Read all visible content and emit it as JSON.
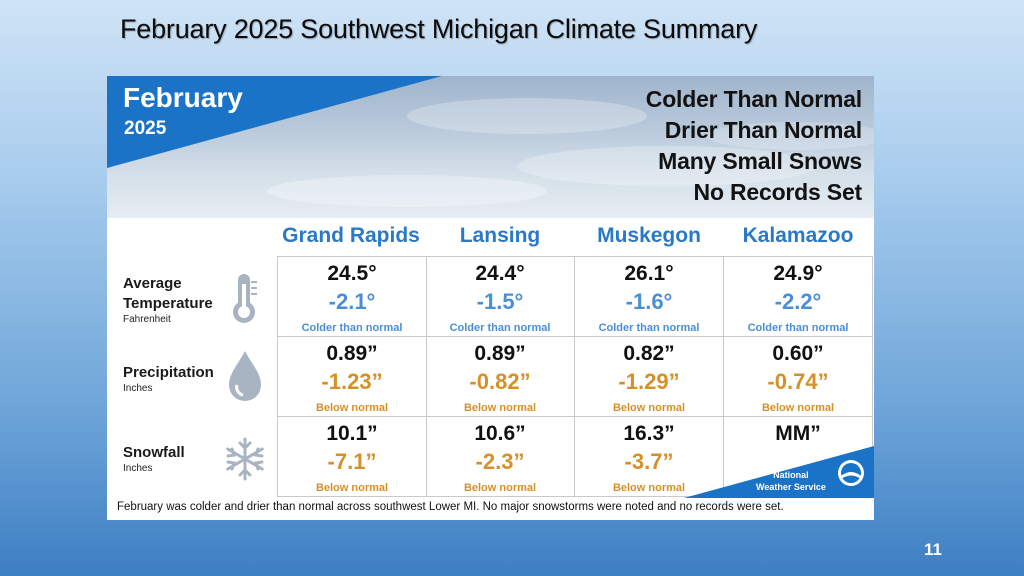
{
  "slide": {
    "title": "February 2025 Southwest Michigan Climate Summary",
    "page_number": "11"
  },
  "banner": {
    "month": "February",
    "year": "2025",
    "headlines": [
      "Colder Than Normal",
      "Drier Than Normal",
      "Many Small Snows",
      "No Records Set"
    ]
  },
  "cities": [
    "Grand Rapids",
    "Lansing",
    "Muskegon",
    "Kalamazoo"
  ],
  "rows": [
    {
      "label": "Average Temperature",
      "label_line1": "Average",
      "label_line2": "Temperature",
      "unit": "Fahrenheit",
      "icon": "thermometer-icon",
      "cells": [
        {
          "value": "24.5°",
          "departure": "-2.1°",
          "note": "Colder than normal"
        },
        {
          "value": "24.4°",
          "departure": "-1.5°",
          "note": "Colder than normal"
        },
        {
          "value": "26.1°",
          "departure": "-1.6°",
          "note": "Colder than normal"
        },
        {
          "value": "24.9°",
          "departure": "-2.2°",
          "note": "Colder than normal"
        }
      ]
    },
    {
      "label": "Precipitation",
      "unit": "Inches",
      "icon": "raindrop-icon",
      "cells": [
        {
          "value": "0.89”",
          "departure": "-1.23”",
          "note": "Below normal"
        },
        {
          "value": "0.89”",
          "departure": "-0.82”",
          "note": "Below normal"
        },
        {
          "value": "0.82”",
          "departure": "-1.29”",
          "note": "Below normal"
        },
        {
          "value": "0.60”",
          "departure": "-0.74”",
          "note": "Below normal"
        }
      ]
    },
    {
      "label": "Snowfall",
      "unit": "Inches",
      "icon": "snowflake-icon",
      "cells": [
        {
          "value": "10.1”",
          "departure": "-7.1”",
          "note": "Below normal"
        },
        {
          "value": "10.6”",
          "departure": "-2.3”",
          "note": "Below normal"
        },
        {
          "value": "16.3”",
          "departure": "-3.7”",
          "note": "Below normal"
        },
        {
          "value": "MM”",
          "departure": "",
          "note": ""
        }
      ]
    }
  ],
  "footer": "February was colder and drier than normal across southwest Lower MI. No major snowstorms were noted and no records were set.",
  "logo": {
    "line1": "National",
    "line2": "Weather Service"
  },
  "colors": {
    "accent_blue": "#1a73c6",
    "departure_blue": "#4a8fd3",
    "departure_orange": "#d59127"
  }
}
